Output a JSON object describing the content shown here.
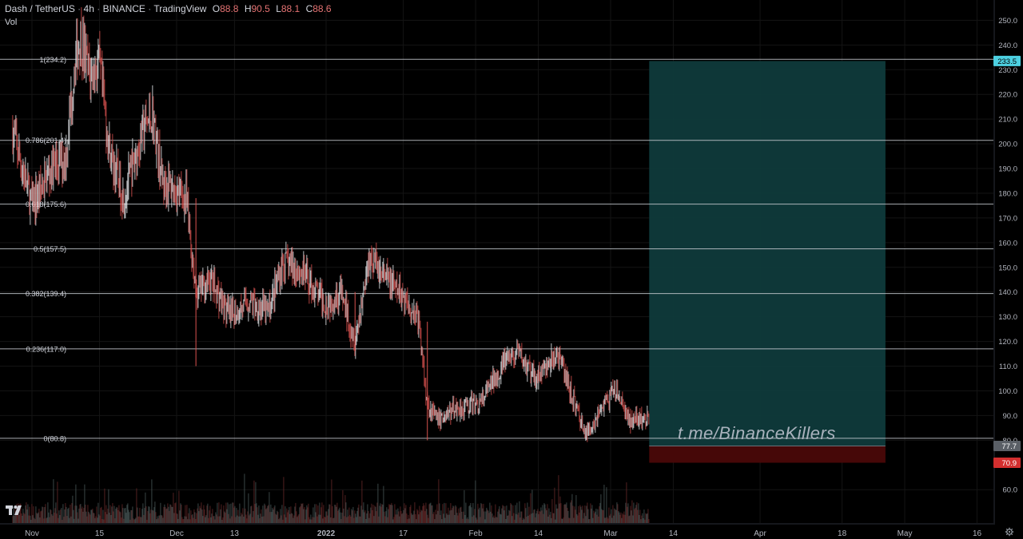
{
  "header": {
    "symbol": "Dash / TetherUS",
    "interval": "4h",
    "exchange": "BINANCE",
    "source": "TradingView",
    "ohlc": [
      {
        "key": "O",
        "value": "88.8"
      },
      {
        "key": "H",
        "value": "90.5"
      },
      {
        "key": "L",
        "value": "88.1"
      },
      {
        "key": "C",
        "value": "88.6"
      }
    ],
    "volume_label": "Vol"
  },
  "watermark": "t.me/BinanceKillers",
  "logo_icon": "tradingview-logo-icon",
  "settings_icon": "gear-icon",
  "colors": {
    "background": "#000000",
    "candle_up": "#e9ecef",
    "candle_down": "#d9534f",
    "fib_line": "#c8ccd2",
    "profit_zone": "#0f3a3b",
    "loss_zone": "#4a0808",
    "current_price_tag": "#4dd0e1",
    "stop_tag": "#d32f2f",
    "entry_tag": "#5a5f66",
    "axis_text": "#b2b5be"
  },
  "chart_data": {
    "type": "candlestick",
    "title": "Dash / TetherUS · 4h · BINANCE",
    "ylim": [
      52,
      254
    ],
    "y_ticks": [
      "250.0",
      "240.0",
      "230.0",
      "220.0",
      "210.0",
      "200.0",
      "190.0",
      "180.0",
      "170.0",
      "160.0",
      "150.0",
      "140.0",
      "130.0",
      "120.0",
      "110.0",
      "100.0",
      "90.0",
      "80.0",
      "60.0"
    ],
    "x_ticks": [
      "Nov",
      "15",
      "Dec",
      "13",
      "2022",
      "17",
      "Feb",
      "14",
      "Mar",
      "14",
      "Apr",
      "18",
      "May",
      "16"
    ],
    "x_tick_dates": [
      "2021-11-01",
      "2021-11-15",
      "2021-12-01",
      "2021-12-13",
      "2022-01-01",
      "2022-01-17",
      "2022-02-01",
      "2022-02-14",
      "2022-03-01",
      "2022-03-14",
      "2022-04-01",
      "2022-04-18",
      "2022-05-01",
      "2022-05-16"
    ],
    "price_path": [
      {
        "date": "2021-10-28",
        "price": 205
      },
      {
        "date": "2021-11-01",
        "price": 175
      },
      {
        "date": "2021-11-05",
        "price": 190
      },
      {
        "date": "2021-11-08",
        "price": 195
      },
      {
        "date": "2021-11-10",
        "price": 235
      },
      {
        "date": "2021-11-11",
        "price": 243
      },
      {
        "date": "2021-11-13",
        "price": 228
      },
      {
        "date": "2021-11-15",
        "price": 232
      },
      {
        "date": "2021-11-17",
        "price": 198
      },
      {
        "date": "2021-11-20",
        "price": 178
      },
      {
        "date": "2021-11-24",
        "price": 205
      },
      {
        "date": "2021-11-26",
        "price": 212
      },
      {
        "date": "2021-11-28",
        "price": 185
      },
      {
        "date": "2021-12-03",
        "price": 178
      },
      {
        "date": "2021-12-05",
        "price": 140
      },
      {
        "date": "2021-12-08",
        "price": 145
      },
      {
        "date": "2021-12-12",
        "price": 130
      },
      {
        "date": "2021-12-16",
        "price": 136
      },
      {
        "date": "2021-12-20",
        "price": 132
      },
      {
        "date": "2021-12-23",
        "price": 152
      },
      {
        "date": "2021-12-27",
        "price": 148
      },
      {
        "date": "2022-01-01",
        "price": 135
      },
      {
        "date": "2022-01-04",
        "price": 140
      },
      {
        "date": "2022-01-07",
        "price": 120
      },
      {
        "date": "2022-01-10",
        "price": 155
      },
      {
        "date": "2022-01-13",
        "price": 146
      },
      {
        "date": "2022-01-17",
        "price": 138
      },
      {
        "date": "2022-01-20",
        "price": 130
      },
      {
        "date": "2022-01-22",
        "price": 95
      },
      {
        "date": "2022-01-24",
        "price": 88
      },
      {
        "date": "2022-01-28",
        "price": 93
      },
      {
        "date": "2022-02-02",
        "price": 95
      },
      {
        "date": "2022-02-07",
        "price": 112
      },
      {
        "date": "2022-02-10",
        "price": 115
      },
      {
        "date": "2022-02-13",
        "price": 105
      },
      {
        "date": "2022-02-16",
        "price": 110
      },
      {
        "date": "2022-02-18",
        "price": 115
      },
      {
        "date": "2022-02-21",
        "price": 98
      },
      {
        "date": "2022-02-24",
        "price": 82
      },
      {
        "date": "2022-02-27",
        "price": 93
      },
      {
        "date": "2022-03-02",
        "price": 100
      },
      {
        "date": "2022-03-05",
        "price": 88
      },
      {
        "date": "2022-03-09",
        "price": 88.6
      }
    ],
    "fib_levels": [
      {
        "label": "1(234.2)",
        "price": 234.2
      },
      {
        "label": "0.786(201.4)",
        "price": 201.4
      },
      {
        "label": "0.618(175.6)",
        "price": 175.6
      },
      {
        "label": "0.5(157.5)",
        "price": 157.5
      },
      {
        "label": "0.382(139.4)",
        "price": 139.4
      },
      {
        "label": "0.236(117.0)",
        "price": 117.0
      },
      {
        "label": "0(80.8)",
        "price": 80.8
      }
    ],
    "position": {
      "type": "long",
      "start_date": "2022-03-09",
      "end_date": "2022-04-27",
      "entry": 77.7,
      "target": 233.5,
      "stop": 70.9,
      "tags": {
        "target": "233.5",
        "entry": "77.7",
        "stop": "70.9"
      }
    },
    "grid": true,
    "volume_pane": true
  }
}
